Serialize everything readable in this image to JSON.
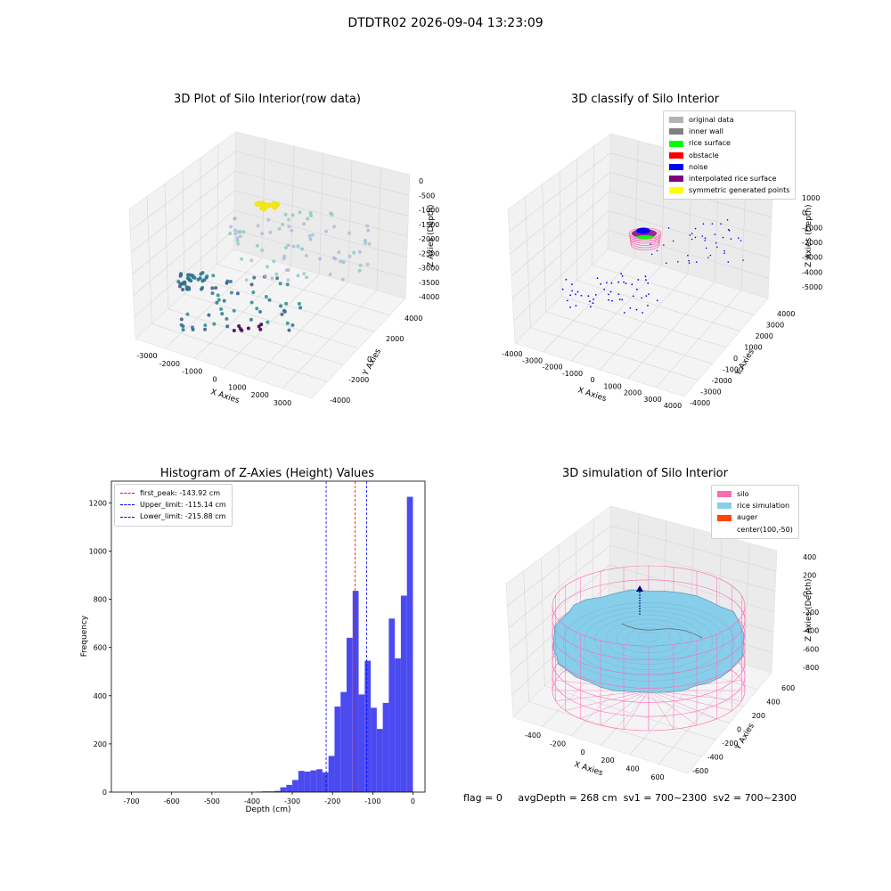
{
  "suptitle": "DTDTR02 2026-09-04 13:23:09",
  "status": {
    "flag": "flag = 0",
    "avg_depth": "avgDepth = 268 cm",
    "sv1": "sv1 = 700~2300",
    "sv2": "sv2 = 700~2300"
  },
  "chart_data": [
    {
      "type": "scatter",
      "title": "3D Plot of Silo Interior(row data)",
      "xlabel": "X Axies",
      "ylabel": "Y Axies",
      "zlabel": "Z Axies (Depth)",
      "xticks": [
        "-3000",
        "-2000",
        "-1000",
        "0",
        "1000",
        "2000",
        "3000"
      ],
      "yticks": [
        "-4000",
        "-2000",
        "0",
        "2000",
        "4000"
      ],
      "zticks": [
        "0",
        "-500",
        "-1000",
        "-1500",
        "-2000",
        "-2500",
        "-3000",
        "-3500",
        "-4000"
      ],
      "colormap": "viridis"
    },
    {
      "type": "scatter",
      "title": "3D classify of Silo Interior",
      "xlabel": "X Axies",
      "ylabel": "Y Axies",
      "zlabel": "Z Axies (Depth)",
      "xticks": [
        "-4000",
        "-3000",
        "-2000",
        "-1000",
        "0",
        "1000",
        "2000",
        "3000",
        "4000"
      ],
      "yticks": [
        "-4000",
        "-3000",
        "-2000",
        "-1000",
        "0",
        "1000",
        "2000",
        "3000",
        "4000"
      ],
      "zticks": [
        "1000",
        "0",
        "-1000",
        "-2000",
        "-3000",
        "-4000",
        "-5000"
      ],
      "legend": [
        {
          "label": "original data",
          "color": "#b3b3b3"
        },
        {
          "label": "inner wall",
          "color": "#808080"
        },
        {
          "label": "rice surface",
          "color": "#00ff00"
        },
        {
          "label": "obstacle",
          "color": "#ff0000"
        },
        {
          "label": "noise",
          "color": "#0000ff"
        },
        {
          "label": "interpolated rice surface",
          "color": "#800080"
        },
        {
          "label": "symmetric generated points",
          "color": "#ffff00"
        }
      ]
    },
    {
      "type": "bar",
      "title": "Histogram of Z-Axies (Height) Values",
      "xlabel": "Depth (cm)",
      "ylabel": "Frequency",
      "xlim": [
        -750,
        30
      ],
      "ylim": [
        0,
        1290
      ],
      "xticks": [
        -700,
        -600,
        -500,
        -400,
        -300,
        -200,
        -100,
        0
      ],
      "yticks": [
        0,
        200,
        400,
        600,
        800,
        1000,
        1200
      ],
      "bin_width": 15,
      "bins": [
        {
          "left": -390,
          "count": 2
        },
        {
          "left": -375,
          "count": 3
        },
        {
          "left": -360,
          "count": 3
        },
        {
          "left": -345,
          "count": 5
        },
        {
          "left": -330,
          "count": 20
        },
        {
          "left": -315,
          "count": 30
        },
        {
          "left": -300,
          "count": 50
        },
        {
          "left": -285,
          "count": 88
        },
        {
          "left": -270,
          "count": 85
        },
        {
          "left": -255,
          "count": 90
        },
        {
          "left": -240,
          "count": 95
        },
        {
          "left": -225,
          "count": 82
        },
        {
          "left": -210,
          "count": 150
        },
        {
          "left": -195,
          "count": 355
        },
        {
          "left": -180,
          "count": 415
        },
        {
          "left": -165,
          "count": 640
        },
        {
          "left": -150,
          "count": 835
        },
        {
          "left": -135,
          "count": 405
        },
        {
          "left": -120,
          "count": 545
        },
        {
          "left": -105,
          "count": 350
        },
        {
          "left": -90,
          "count": 262
        },
        {
          "left": -75,
          "count": 370
        },
        {
          "left": -60,
          "count": 720
        },
        {
          "left": -45,
          "count": 555
        },
        {
          "left": -30,
          "count": 815
        },
        {
          "left": -15,
          "count": 1225
        }
      ],
      "bar_color": "#4a4af0",
      "vlines": [
        {
          "label": "first_peak: -143.92 cm",
          "value": -143.92,
          "color": "#ff0000"
        },
        {
          "label": "Upper_limit: -115.14 cm",
          "value": -115.14,
          "color": "#0000ff"
        },
        {
          "label": "Lower_limit: -215.88 cm",
          "value": -215.88,
          "color": "#0000ff"
        }
      ]
    },
    {
      "type": "surface",
      "title": "3D simulation of Silo Interior",
      "xlabel": "X Axies",
      "ylabel": "Y Axies",
      "zlabel": "Z Axies (Depth)",
      "xticks": [
        "-400",
        "-200",
        "0",
        "200",
        "400",
        "600"
      ],
      "yticks": [
        "-600",
        "-400",
        "-200",
        "0",
        "200",
        "400",
        "600"
      ],
      "zticks": [
        "400",
        "200",
        "0",
        "-200",
        "-400",
        "-600",
        "-800"
      ],
      "legend": [
        {
          "label": "silo",
          "color": "#ff69b4"
        },
        {
          "label": "rice simulation",
          "color": "#87ceeb"
        },
        {
          "label": "auger",
          "color": "#ff4500"
        },
        {
          "label": "center(100,-50)",
          "color": ""
        }
      ]
    }
  ]
}
